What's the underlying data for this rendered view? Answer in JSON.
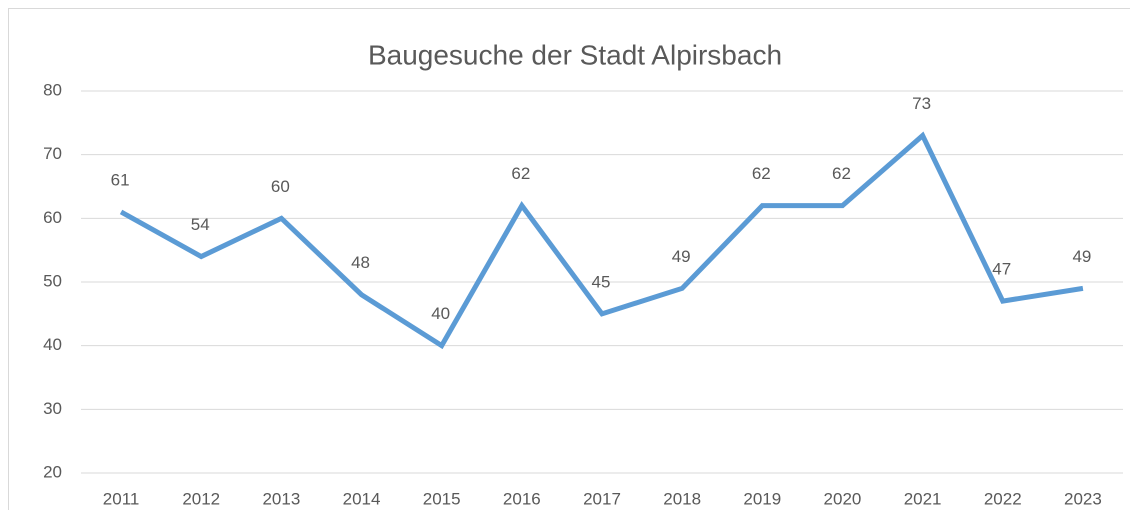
{
  "chart_data": {
    "type": "line",
    "title": "Baugesuche der Stadt Alpirsbach",
    "categories": [
      "2011",
      "2012",
      "2013",
      "2014",
      "2015",
      "2016",
      "2017",
      "2018",
      "2019",
      "2020",
      "2021",
      "2022",
      "2023"
    ],
    "values": [
      61,
      54,
      60,
      48,
      40,
      62,
      45,
      49,
      62,
      62,
      73,
      47,
      49
    ],
    "color": "#5b9bd5",
    "ylim": [
      20,
      80
    ],
    "yticks": [
      20,
      30,
      40,
      50,
      60,
      70,
      80
    ],
    "grid": true
  }
}
